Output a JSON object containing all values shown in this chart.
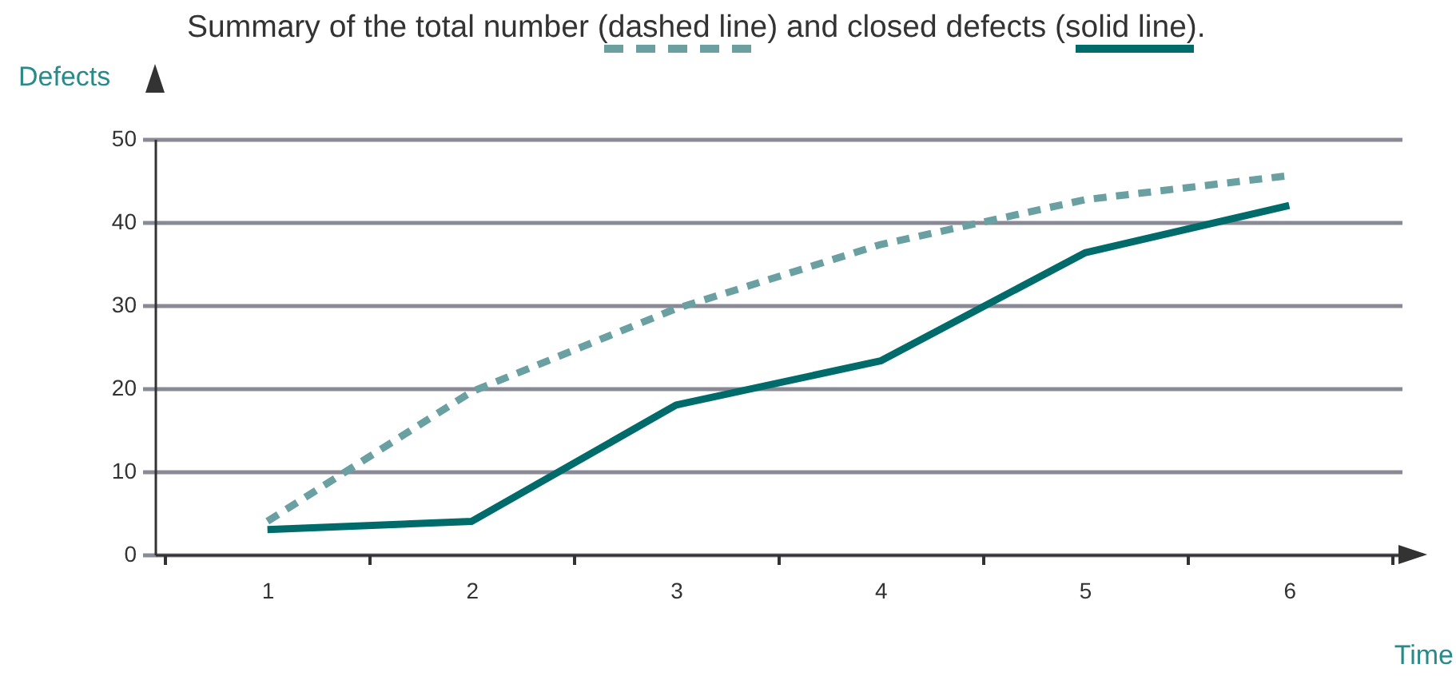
{
  "chart_data": {
    "type": "line",
    "title": "Summary of the total number (dashed line) and closed defects (solid line).",
    "xlabel": "Time",
    "ylabel": "Defects",
    "categories": [
      "1",
      "2",
      "3",
      "4",
      "5",
      "6"
    ],
    "series": [
      {
        "color": "#6aa0a2",
        "line_style": "dashed",
        "values": [
          4,
          19.6,
          29.6,
          37.3,
          42.7,
          45.6
        ]
      },
      {
        "color": "#006b6b",
        "line_style": "solid",
        "values": [
          3,
          4,
          18,
          23.3,
          36.3,
          42
        ]
      }
    ],
    "ylim": [
      0,
      50
    ],
    "yticks": [
      0,
      10,
      20,
      30,
      40,
      50
    ],
    "grid": "y",
    "marker": "none"
  }
}
